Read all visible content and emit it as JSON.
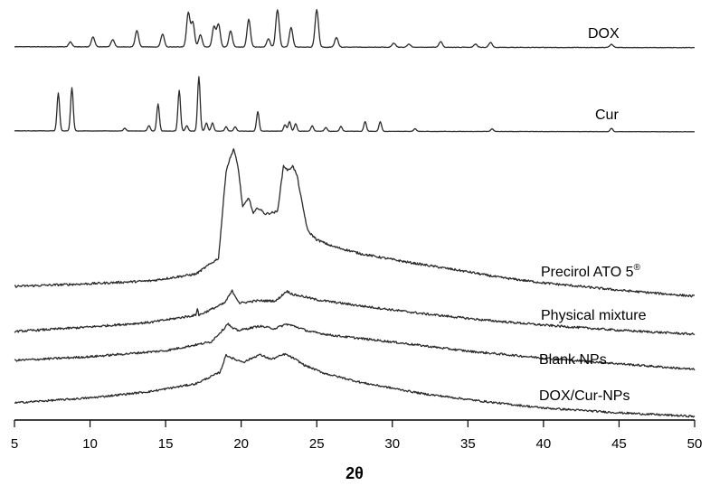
{
  "chart_data": {
    "type": "line",
    "title": "",
    "xlabel": "2θ",
    "ylabel": "",
    "xlim": [
      5,
      50
    ],
    "x_ticks": [
      "5",
      "10",
      "15",
      "20",
      "25",
      "30",
      "35",
      "40",
      "45",
      "50"
    ],
    "grid": false,
    "legend": "none (series labeled inline at right of each trace)",
    "y_scale": "arbitrary intensity units, traces vertically offset (stacked)",
    "series": [
      {
        "name": "DOX",
        "baseline": 0,
        "peaks": [
          [
            8.7,
            0.6
          ],
          [
            10.2,
            1.2
          ],
          [
            11.5,
            0.9
          ],
          [
            13.1,
            2.0
          ],
          [
            14.8,
            1.6
          ],
          [
            16.5,
            4.2
          ],
          [
            16.8,
            3.0
          ],
          [
            17.3,
            1.5
          ],
          [
            18.2,
            2.5
          ],
          [
            18.5,
            2.8
          ],
          [
            19.3,
            2.0
          ],
          [
            20.5,
            3.4
          ],
          [
            21.8,
            1.0
          ],
          [
            22.4,
            4.6
          ],
          [
            23.3,
            2.4
          ],
          [
            25.0,
            4.6
          ],
          [
            26.3,
            1.2
          ],
          [
            30.1,
            0.5
          ],
          [
            31.1,
            0.4
          ],
          [
            33.2,
            0.7
          ],
          [
            35.5,
            0.4
          ],
          [
            36.5,
            0.6
          ],
          [
            44.5,
            0.4
          ]
        ]
      },
      {
        "name": "Cur",
        "baseline": 0,
        "peaks": [
          [
            7.9,
            7.0
          ],
          [
            8.8,
            8.0
          ],
          [
            12.3,
            0.5
          ],
          [
            13.9,
            1.0
          ],
          [
            14.5,
            5.0
          ],
          [
            15.9,
            7.5
          ],
          [
            16.4,
            1.0
          ],
          [
            17.2,
            10.0
          ],
          [
            17.7,
            1.5
          ],
          [
            18.1,
            1.5
          ],
          [
            19.0,
            0.8
          ],
          [
            19.6,
            0.8
          ],
          [
            21.1,
            3.6
          ],
          [
            22.9,
            1.2
          ],
          [
            23.2,
            1.8
          ],
          [
            23.6,
            1.4
          ],
          [
            24.7,
            1.0
          ],
          [
            25.6,
            0.7
          ],
          [
            26.6,
            0.9
          ],
          [
            28.2,
            1.8
          ],
          [
            29.2,
            1.8
          ],
          [
            31.5,
            0.5
          ],
          [
            36.6,
            0.5
          ],
          [
            44.5,
            0.6
          ]
        ]
      },
      {
        "name": "Precirol ATO 5®",
        "points": [
          [
            5,
            0.0
          ],
          [
            10,
            0.3
          ],
          [
            14,
            0.6
          ],
          [
            17,
            1.2
          ],
          [
            18.5,
            2.5
          ],
          [
            19.0,
            9.5
          ],
          [
            19.2,
            10.3
          ],
          [
            19.5,
            11.3
          ],
          [
            19.8,
            9.8
          ],
          [
            20.1,
            6.6
          ],
          [
            20.5,
            7.4
          ],
          [
            20.8,
            6.1
          ],
          [
            21.1,
            6.6
          ],
          [
            21.6,
            6.1
          ],
          [
            22.4,
            6.3
          ],
          [
            22.8,
            10.0
          ],
          [
            23.1,
            9.6
          ],
          [
            23.4,
            10.0
          ],
          [
            23.7,
            9.2
          ],
          [
            24.0,
            7.2
          ],
          [
            24.4,
            4.8
          ],
          [
            25.0,
            4.1
          ],
          [
            26.0,
            3.6
          ],
          [
            28.0,
            3.0
          ],
          [
            31.0,
            2.4
          ],
          [
            35.0,
            1.7
          ],
          [
            37.0,
            1.3
          ],
          [
            40.0,
            0.9
          ],
          [
            45.0,
            0.4
          ],
          [
            50,
            0.0
          ]
        ]
      },
      {
        "name": "Physical mixture",
        "points": [
          [
            5,
            0.0
          ],
          [
            10,
            0.4
          ],
          [
            14,
            0.8
          ],
          [
            17,
            1.4
          ],
          [
            17.1,
            2.0
          ],
          [
            17.2,
            1.4
          ],
          [
            18.9,
            2.4
          ],
          [
            19.4,
            3.4
          ],
          [
            19.9,
            2.4
          ],
          [
            21.0,
            2.6
          ],
          [
            22.3,
            2.6
          ],
          [
            23.0,
            3.4
          ],
          [
            23.5,
            3.1
          ],
          [
            24.0,
            3.0
          ],
          [
            25.0,
            2.7
          ],
          [
            28.0,
            2.2
          ],
          [
            32.0,
            1.6
          ],
          [
            36.0,
            1.1
          ],
          [
            40.0,
            0.7
          ],
          [
            45.0,
            0.3
          ],
          [
            50,
            0.0
          ]
        ]
      },
      {
        "name": "Blank NPs",
        "points": [
          [
            5,
            0.0
          ],
          [
            10,
            0.4
          ],
          [
            15,
            1.0
          ],
          [
            18,
            1.8
          ],
          [
            18.9,
            3.0
          ],
          [
            19.1,
            3.4
          ],
          [
            19.4,
            3.0
          ],
          [
            19.8,
            2.8
          ],
          [
            20.5,
            3.0
          ],
          [
            21.2,
            3.2
          ],
          [
            22.2,
            3.0
          ],
          [
            23.0,
            3.4
          ],
          [
            23.6,
            3.2
          ],
          [
            24.5,
            2.8
          ],
          [
            26.0,
            2.5
          ],
          [
            30.0,
            2.0
          ],
          [
            35.0,
            1.3
          ],
          [
            40.0,
            0.8
          ],
          [
            45.0,
            0.4
          ],
          [
            50,
            0.0
          ]
        ]
      },
      {
        "name": "DOX/Cur-NPs",
        "points": [
          [
            5,
            0.0
          ],
          [
            10,
            0.6
          ],
          [
            14,
            1.3
          ],
          [
            17,
            2.1
          ],
          [
            18.6,
            3.2
          ],
          [
            19.0,
            4.8
          ],
          [
            19.3,
            4.6
          ],
          [
            19.6,
            4.4
          ],
          [
            20.2,
            4.2
          ],
          [
            21.2,
            4.9
          ],
          [
            22.0,
            4.5
          ],
          [
            22.9,
            5.0
          ],
          [
            23.5,
            4.6
          ],
          [
            24.2,
            4.0
          ],
          [
            25.5,
            3.3
          ],
          [
            28.0,
            2.5
          ],
          [
            32.0,
            1.6
          ],
          [
            36.0,
            1.0
          ],
          [
            40.0,
            0.5
          ],
          [
            45.0,
            0.2
          ],
          [
            50,
            0.0
          ]
        ]
      }
    ]
  }
}
